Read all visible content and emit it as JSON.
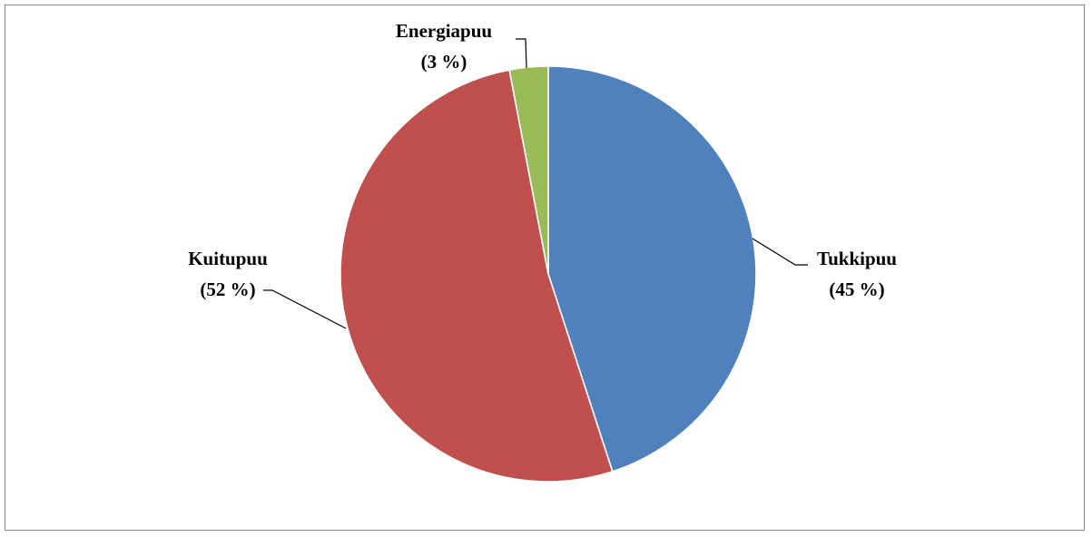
{
  "chart_data": {
    "type": "pie",
    "title": "",
    "slices": [
      {
        "label": "Tukkipuu",
        "value": 45,
        "value_text": "(45 %)",
        "color": "#4F81BD"
      },
      {
        "label": "Kuitupuu",
        "value": 52,
        "value_text": "(52 %)",
        "color": "#C0504D"
      },
      {
        "label": "Energiapuu",
        "value": 3,
        "value_text": "(3 %)",
        "color": "#9BBB59"
      }
    ],
    "start_angle_deg": 0,
    "direction": "clockwise",
    "legend": "none",
    "labels": "outside with leader lines"
  }
}
